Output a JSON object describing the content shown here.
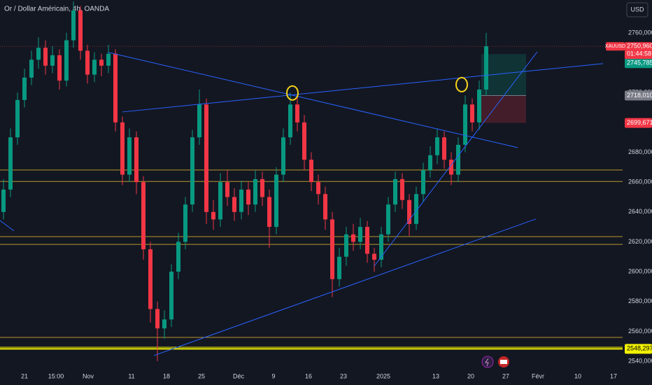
{
  "chart_data": {
    "type": "candlestick",
    "title": "Or / Dollar Américain, 4h, OANDA",
    "symbol": "XAUUSD",
    "currency": "USD",
    "countdown": "01:44:58",
    "up_color": "#089981",
    "down_color": "#f23645",
    "grid": false,
    "x": [
      -3,
      -2,
      -1,
      0,
      1,
      2,
      3,
      4,
      5,
      6,
      7,
      8,
      9,
      10,
      11,
      12,
      13,
      14,
      15,
      16,
      17,
      18,
      19,
      20,
      21,
      22,
      23,
      24,
      25,
      26,
      27,
      28,
      29,
      30,
      31,
      32,
      33,
      34,
      35,
      36,
      37,
      38,
      39,
      40,
      41,
      42,
      43,
      44,
      45,
      46,
      47,
      48,
      49,
      50,
      51,
      52,
      53,
      54,
      55,
      56,
      57,
      58,
      59,
      60,
      61,
      62,
      63,
      64,
      65,
      66
    ],
    "open": [
      2640,
      2655,
      2690,
      2715,
      2730,
      2742,
      2750,
      2738,
      2745,
      2728,
      2755,
      2775,
      2748,
      2732,
      2742,
      2738,
      2746,
      2700,
      2665,
      2690,
      2660,
      2615,
      2575,
      2562,
      2568,
      2600,
      2620,
      2645,
      2690,
      2712,
      2640,
      2635,
      2660,
      2650,
      2640,
      2655,
      2645,
      2662,
      2650,
      2630,
      2665,
      2690,
      2712,
      2700,
      2675,
      2660,
      2652,
      2635,
      2595,
      2610,
      2625,
      2620,
      2630,
      2612,
      2608,
      2625,
      2645,
      2662,
      2648,
      2632,
      2652,
      2668,
      2678,
      2690,
      2675,
      2665,
      2685,
      2712,
      2700,
      2722
    ],
    "high": [
      2662,
      2696,
      2720,
      2736,
      2748,
      2757,
      2755,
      2751,
      2749,
      2760,
      2781,
      2778,
      2752,
      2747,
      2746,
      2752,
      2749,
      2704,
      2696,
      2694,
      2664,
      2620,
      2580,
      2574,
      2605,
      2626,
      2650,
      2695,
      2722,
      2716,
      2648,
      2666,
      2668,
      2656,
      2661,
      2660,
      2668,
      2667,
      2655,
      2670,
      2696,
      2720,
      2718,
      2705,
      2680,
      2665,
      2657,
      2640,
      2616,
      2630,
      2632,
      2636,
      2634,
      2616,
      2630,
      2650,
      2667,
      2666,
      2652,
      2657,
      2673,
      2684,
      2696,
      2694,
      2680,
      2690,
      2718,
      2716,
      2728,
      2760
    ],
    "low": [
      2635,
      2650,
      2685,
      2710,
      2725,
      2736,
      2732,
      2733,
      2722,
      2724,
      2750,
      2742,
      2726,
      2727,
      2731,
      2733,
      2694,
      2658,
      2660,
      2652,
      2608,
      2566,
      2540,
      2555,
      2563,
      2595,
      2615,
      2640,
      2685,
      2632,
      2628,
      2630,
      2644,
      2634,
      2635,
      2638,
      2640,
      2644,
      2616,
      2625,
      2660,
      2685,
      2694,
      2668,
      2654,
      2645,
      2628,
      2583,
      2590,
      2604,
      2614,
      2615,
      2606,
      2600,
      2603,
      2620,
      2640,
      2642,
      2624,
      2628,
      2647,
      2663,
      2672,
      2669,
      2658,
      2660,
      2680,
      2694,
      2695,
      2718
    ],
    "close": [
      2655,
      2690,
      2715,
      2730,
      2742,
      2750,
      2738,
      2745,
      2728,
      2755,
      2775,
      2748,
      2732,
      2742,
      2738,
      2746,
      2700,
      2665,
      2690,
      2660,
      2615,
      2575,
      2562,
      2568,
      2600,
      2620,
      2645,
      2690,
      2712,
      2640,
      2635,
      2660,
      2650,
      2640,
      2655,
      2645,
      2662,
      2650,
      2630,
      2665,
      2690,
      2712,
      2700,
      2675,
      2660,
      2652,
      2635,
      2595,
      2610,
      2625,
      2620,
      2630,
      2612,
      2608,
      2625,
      2645,
      2662,
      2648,
      2632,
      2652,
      2668,
      2678,
      2690,
      2675,
      2665,
      2685,
      2712,
      2700,
      2722,
      2751
    ],
    "xlim": [
      -3.5,
      85.5
    ],
    "ylim": [
      2534.4,
      2782.0
    ],
    "xticks": [
      {
        "value": 0,
        "label": "21"
      },
      {
        "value": 4.5,
        "label": "15:00"
      },
      {
        "value": 9.1,
        "label": "Nov"
      },
      {
        "value": 15.3,
        "label": "11"
      },
      {
        "value": 20.3,
        "label": "18"
      },
      {
        "value": 25.3,
        "label": "25"
      },
      {
        "value": 30.6,
        "label": "Déc"
      },
      {
        "value": 35.6,
        "label": "9"
      },
      {
        "value": 40.6,
        "label": "16"
      },
      {
        "value": 45.6,
        "label": "23"
      },
      {
        "value": 51.3,
        "label": "2025"
      },
      {
        "value": 58.8,
        "label": "13"
      },
      {
        "value": 63.8,
        "label": "20"
      },
      {
        "value": 68.8,
        "label": "27"
      },
      {
        "value": 73.4,
        "label": "Févr"
      },
      {
        "value": 79.1,
        "label": "10"
      },
      {
        "value": 84.2,
        "label": "17"
      }
    ],
    "yticks": [
      {
        "value": 2540,
        "label": "2540,000"
      },
      {
        "value": 2560,
        "label": "2560,000"
      },
      {
        "value": 2580,
        "label": "2580,000"
      },
      {
        "value": 2600,
        "label": "2600,000"
      },
      {
        "value": 2620,
        "label": "2620,000"
      },
      {
        "value": 2640,
        "label": "2640,000"
      },
      {
        "value": 2660,
        "label": "2660,000"
      },
      {
        "value": 2680,
        "label": "2680,000"
      },
      {
        "value": 2700,
        "label": "2700,000"
      },
      {
        "value": 2720,
        "label": "2720,000"
      },
      {
        "value": 2740,
        "label": "2740,000"
      },
      {
        "value": 2760,
        "label": "2760,000"
      }
    ],
    "last_price": {
      "value": 2750.96,
      "label": "2750,960"
    },
    "hlines": [
      {
        "value": 2668.1,
        "color": "#b8962a"
      },
      {
        "value": 2660.4,
        "color": "#b8962a"
      },
      {
        "value": 2623.5,
        "color": "#b8962a"
      },
      {
        "value": 2618.3,
        "color": "#b8962a"
      },
      {
        "value": 2556.0,
        "color": "#b8962a"
      },
      {
        "value": 2549.4,
        "color": "#f2f200"
      },
      {
        "value": 2548.297,
        "color": "#f2f200",
        "label": "2548,297"
      }
    ],
    "trendline_color": "#2962ff",
    "trendlines": [
      {
        "x": [
          12,
          70.5
        ],
        "y": [
          2746.9,
          2683.1
        ]
      },
      {
        "x": [
          14,
          82.7
        ],
        "y": [
          2707.0,
          2739.4
        ]
      },
      {
        "x": [
          18.5,
          73.1
        ],
        "y": [
          2543.8,
          2635.3
        ]
      },
      {
        "x": [
          50,
          73.3
        ],
        "y": [
          2603.8,
          2747.3
        ]
      },
      {
        "x": [
          -3.5,
          -1.5
        ],
        "y": [
          2634.3,
          2627.3
        ]
      }
    ],
    "circle_color": "#f5d31b",
    "circles": [
      {
        "x": 38.3,
        "y": 2719.7
      },
      {
        "x": 62.5,
        "y": 2725.3
      }
    ],
    "position": {
      "x": [
        65.3,
        71.7
      ],
      "target": {
        "value": 2745.785,
        "label": "2745,785"
      },
      "entry": {
        "value": 2718.01,
        "label": "2718,010"
      },
      "stop": {
        "value": 2699.671,
        "label": "2699,671"
      }
    }
  }
}
